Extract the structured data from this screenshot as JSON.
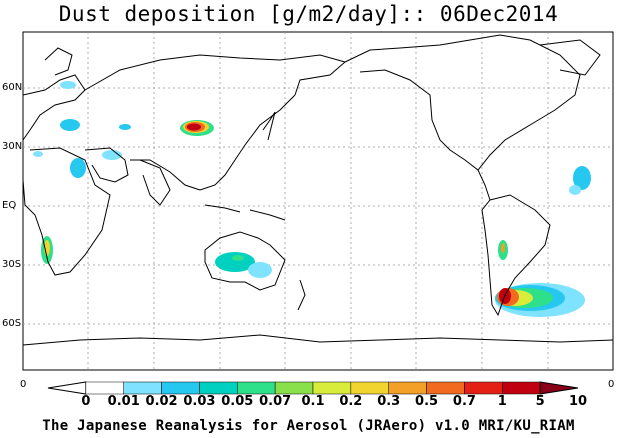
{
  "header": {
    "title": "Dust deposition [g/m2/day]:: 06Dec2014"
  },
  "map": {
    "lat_labels": [
      "60N",
      "30N",
      "EQ",
      "30S",
      "60S"
    ],
    "edge_left": "0",
    "edge_right": "0"
  },
  "colorbar": {
    "labels": [
      "0",
      "0.01",
      "0.02",
      "0.03",
      "0.05",
      "0.07",
      "0.1",
      "0.2",
      "0.3",
      "0.5",
      "0.7",
      "1",
      "5",
      "10"
    ],
    "colors": [
      "#ffffff",
      "#ffffff",
      "#7fe3ff",
      "#26c8f0",
      "#00d0c0",
      "#2fe08a",
      "#8ae04a",
      "#d8ec3c",
      "#f2d430",
      "#f2a028",
      "#f26a20",
      "#e42014",
      "#c00010",
      "#8a0018"
    ]
  },
  "footer": {
    "credit": "The Japanese Reanalysis for Aerosol (JRAero) v1.0 MRI/KU_RIAM"
  }
}
